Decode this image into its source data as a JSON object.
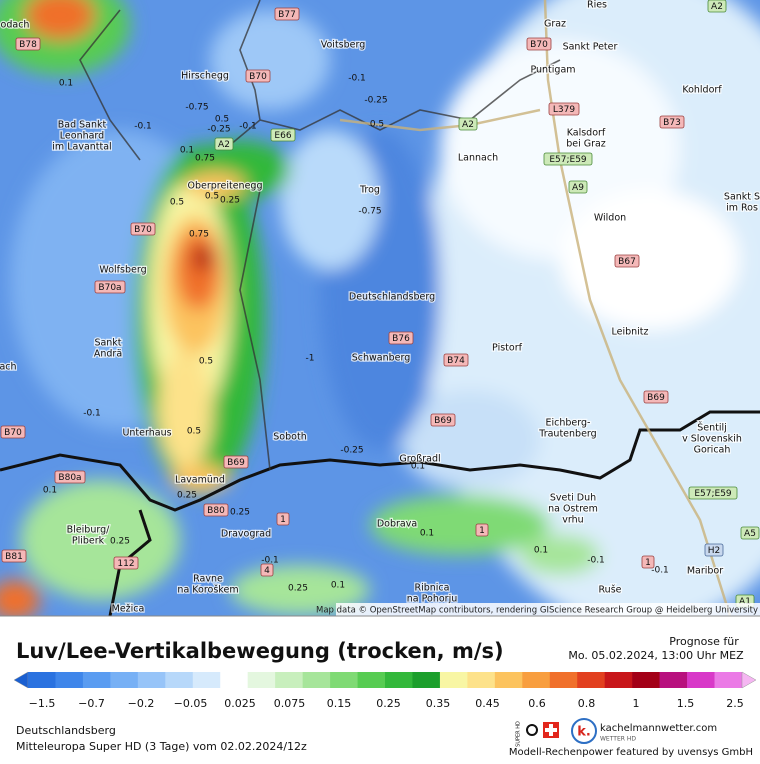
{
  "map": {
    "places": [
      [
        "odach"
      ],
      [
        "Voitsberg"
      ],
      [
        "Hirschegg"
      ],
      [
        "Bad Sankt",
        "Leonhard",
        "im Lavanttal"
      ],
      [
        "Oberpreitenegg"
      ],
      [
        "Trog"
      ],
      [
        "Lannach"
      ],
      [
        "Graz"
      ],
      [
        "Sankt Peter"
      ],
      [
        "Puntigam"
      ],
      [
        "Kalsdorf",
        "bei Graz"
      ],
      [
        "Wildon"
      ],
      [
        "Kohldorf"
      ],
      [
        "Sankt S",
        "im Ros"
      ],
      [
        "Wolfsberg"
      ],
      [
        "Deutschlandsberg"
      ],
      [
        "Schwanberg"
      ],
      [
        "Pistorf"
      ],
      [
        "Leibnitz"
      ],
      [
        "Sankt",
        "Andrä"
      ],
      [
        "ach"
      ],
      [
        "Unterhaus"
      ],
      [
        "Soboth"
      ],
      [
        "Großradl"
      ],
      [
        "Eichberg-",
        "Trautenberg"
      ],
      [
        "Šentilj",
        "v Slovenskih",
        "Goricah"
      ],
      [
        "Lavamünd"
      ],
      [
        "Bleiburg/",
        "Pliberk"
      ],
      [
        "Dravograd"
      ],
      [
        "Dobrava"
      ],
      [
        "Sveti Duh",
        "na Ostrem",
        "vrhu"
      ],
      [
        "Maribor"
      ],
      [
        "Ravne",
        "na Koroškem"
      ],
      [
        "Ribnica",
        "na Pohorju"
      ],
      [
        "Ruše"
      ],
      [
        "Mežica"
      ],
      [
        "Ries"
      ]
    ],
    "roads": [
      "B77",
      "B78",
      "B70",
      "E66",
      "A2",
      "A2",
      "A2",
      "B70",
      "L379",
      "B73",
      "E57;E59",
      "A9",
      "B67",
      "B70",
      "B70a",
      "B76",
      "B74",
      "B69",
      "B69",
      "B69",
      "B70",
      "B80a",
      "B80",
      "B81",
      "112",
      "1",
      "1",
      "1",
      "4",
      "H2",
      "A5",
      "E57;E59",
      "A1"
    ],
    "contours": [
      "0.1",
      "-0.1",
      "-0.75",
      "0.5",
      "-0.25",
      "-0.1",
      "0.1",
      "0.75",
      "0.5",
      "0.25",
      "0.5",
      "0.75",
      "-0.1",
      "-0.25",
      "0.5",
      "-0.75",
      "-1",
      "0.5",
      "0.5",
      "-0.1",
      "-0.25",
      "0.1",
      "0.25",
      "0.25",
      "0.1",
      "0.25",
      "0.1",
      "0.1",
      "-0.1",
      "-0.1",
      "-0.1",
      "0.25",
      "0.1"
    ],
    "attribution": "Map data © OpenStreetMap contributors, rendering GIScience Research Group @ Heidelberg University"
  },
  "legend": {
    "title": "Luv/Lee-Vertikalbewegung (trocken, m/s)",
    "forecast_label": "Prognose für",
    "forecast_time": "Mo. 05.02.2024, 13:00 Uhr MEZ",
    "ticks": [
      "−1.5",
      "−0.7",
      "−0.2",
      "−0.05",
      "0.025",
      "0.075",
      "0.15",
      "0.25",
      "0.35",
      "0.45",
      "0.6",
      "0.8",
      "1",
      "1.5",
      "2.5"
    ],
    "colors": [
      "#1a5fd1",
      "#2a72e0",
      "#3f86ea",
      "#5a9cf1",
      "#77b0f5",
      "#97c4f8",
      "#b7d8fa",
      "#d6eafc",
      "#ffffff",
      "#e4f7df",
      "#c8efbd",
      "#a6e59a",
      "#7fda74",
      "#57cc52",
      "#33b83b",
      "#1c9f2c",
      "#f8f6a4",
      "#fde28a",
      "#fcc35e",
      "#f89e3f",
      "#f0702b",
      "#e2401f",
      "#c8161a",
      "#a30017",
      "#b8107e",
      "#d838c8",
      "#eb7ae6",
      "#f5b6f2"
    ]
  },
  "footer": {
    "location": "Deutschlandsberg",
    "model": "Mitteleuropa Super HD (3 Tage) vom 02.02.2024/12z",
    "site": "kachelmannwetter.com",
    "site_sub": "WETTER HD",
    "logo_text": "SUPER HD",
    "credit": "Modell-Rechenpower featured by uvensys GmbH"
  }
}
